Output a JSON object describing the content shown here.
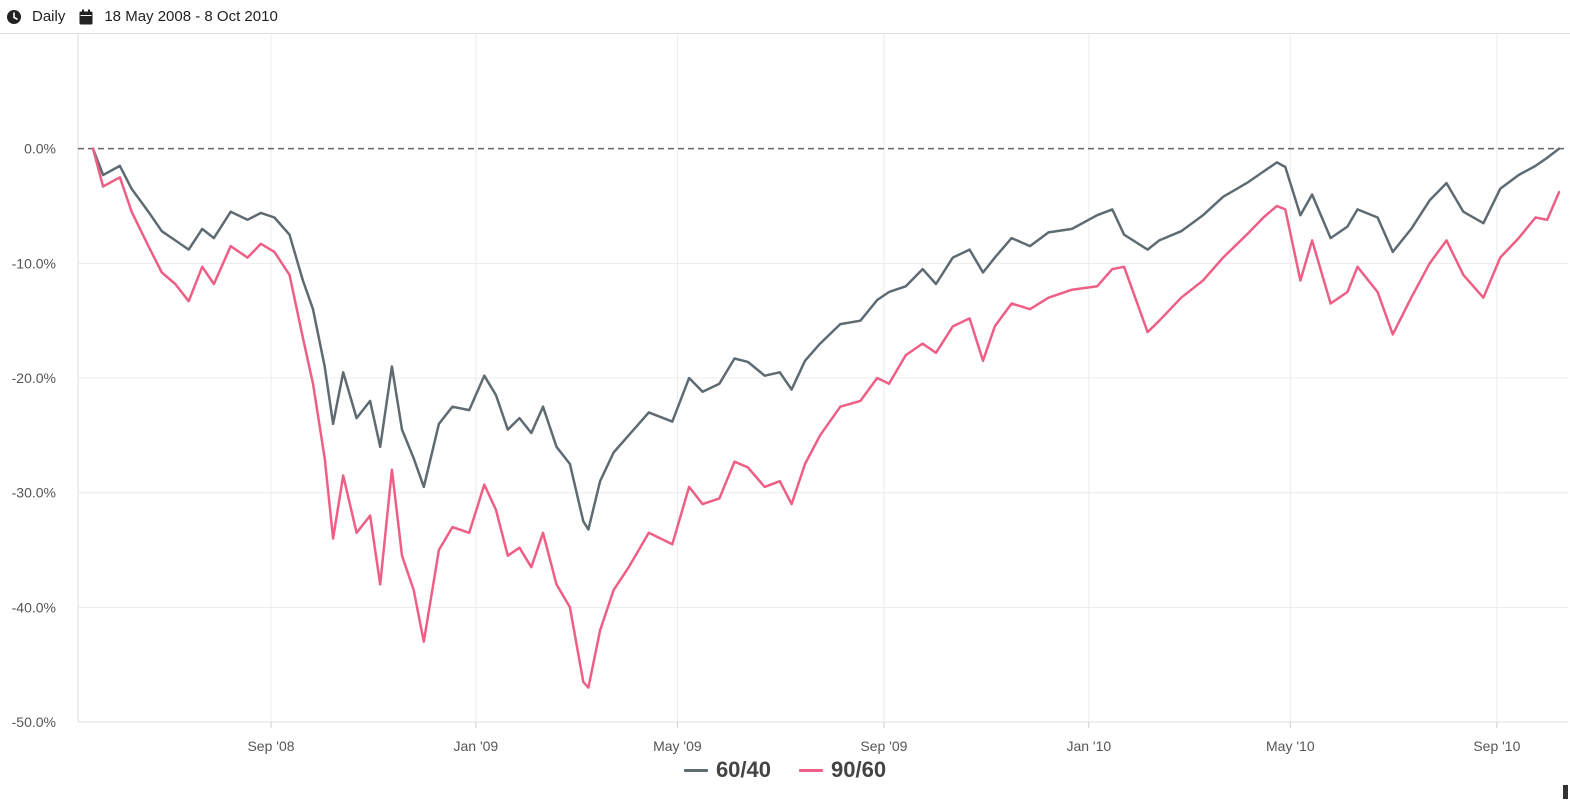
{
  "toolbar": {
    "frequency_icon": "clock-icon",
    "frequency": "Daily",
    "date_icon": "calendar-icon",
    "date_range": "18 May 2008 - 8 Oct 2010"
  },
  "colors": {
    "series_6040": "#5f6b72",
    "series_9060": "#ee5f86",
    "baseline": "#666666",
    "grid": "#ececec"
  },
  "chart_data": {
    "type": "line",
    "title": "",
    "xlabel": "",
    "ylabel": "",
    "ylim": [
      -50,
      10
    ],
    "xlim": [
      "2008-05-18",
      "2010-10-08"
    ],
    "yticks": [
      0,
      -10,
      -20,
      -30,
      -40,
      -50
    ],
    "ytick_labels": [
      "0.0%",
      "-10.0%",
      "-20.0%",
      "-30.0%",
      "-40.0%",
      "-50.0%"
    ],
    "xticks": [
      "2008-09-01",
      "2009-01-01",
      "2009-05-01",
      "2009-09-01",
      "2010-01-01",
      "2010-05-01",
      "2010-09-01"
    ],
    "xtick_labels": [
      "Sep '08",
      "Jan '09",
      "May '09",
      "Sep '09",
      "Jan '10",
      "May '10",
      "Sep '10"
    ],
    "baseline": 0,
    "grid": true,
    "legend_position": "bottom-center",
    "series": [
      {
        "name": "60/40",
        "points": [
          [
            "2008-05-18",
            0
          ],
          [
            "2008-05-24",
            -2.3
          ],
          [
            "2008-06-03",
            -1.5
          ],
          [
            "2008-06-10",
            -3.5
          ],
          [
            "2008-06-20",
            -5.5
          ],
          [
            "2008-06-28",
            -7.2
          ],
          [
            "2008-07-06",
            -8.0
          ],
          [
            "2008-07-14",
            -8.8
          ],
          [
            "2008-07-22",
            -7.0
          ],
          [
            "2008-07-29",
            -7.8
          ],
          [
            "2008-08-08",
            -5.5
          ],
          [
            "2008-08-18",
            -6.2
          ],
          [
            "2008-08-26",
            -5.6
          ],
          [
            "2008-09-03",
            -6.0
          ],
          [
            "2008-09-12",
            -7.5
          ],
          [
            "2008-09-20",
            -11.5
          ],
          [
            "2008-09-26",
            -14.0
          ],
          [
            "2008-10-03",
            -19.0
          ],
          [
            "2008-10-08",
            -24.0
          ],
          [
            "2008-10-14",
            -19.5
          ],
          [
            "2008-10-22",
            -23.5
          ],
          [
            "2008-10-30",
            -22.0
          ],
          [
            "2008-11-05",
            -26.0
          ],
          [
            "2008-11-12",
            -19.0
          ],
          [
            "2008-11-18",
            -24.5
          ],
          [
            "2008-11-25",
            -27.0
          ],
          [
            "2008-12-01",
            -29.5
          ],
          [
            "2008-12-10",
            -24.0
          ],
          [
            "2008-12-18",
            -22.5
          ],
          [
            "2008-12-28",
            -22.8
          ],
          [
            "2009-01-06",
            -19.8
          ],
          [
            "2009-01-13",
            -21.5
          ],
          [
            "2009-01-20",
            -24.5
          ],
          [
            "2009-01-27",
            -23.5
          ],
          [
            "2009-02-03",
            -24.8
          ],
          [
            "2009-02-10",
            -22.5
          ],
          [
            "2009-02-18",
            -26.0
          ],
          [
            "2009-02-26",
            -27.5
          ],
          [
            "2009-03-06",
            -32.5
          ],
          [
            "2009-03-09",
            -33.2
          ],
          [
            "2009-03-16",
            -29.0
          ],
          [
            "2009-03-24",
            -26.5
          ],
          [
            "2009-04-02",
            -25.0
          ],
          [
            "2009-04-14",
            -23.0
          ],
          [
            "2009-04-28",
            -23.8
          ],
          [
            "2009-05-08",
            -20.0
          ],
          [
            "2009-05-16",
            -21.2
          ],
          [
            "2009-05-26",
            -20.5
          ],
          [
            "2009-06-04",
            -18.3
          ],
          [
            "2009-06-12",
            -18.6
          ],
          [
            "2009-06-22",
            -19.8
          ],
          [
            "2009-07-01",
            -19.5
          ],
          [
            "2009-07-08",
            -21.0
          ],
          [
            "2009-07-16",
            -18.5
          ],
          [
            "2009-07-25",
            -17.0
          ],
          [
            "2009-08-06",
            -15.3
          ],
          [
            "2009-08-18",
            -15.0
          ],
          [
            "2009-08-28",
            -13.2
          ],
          [
            "2009-09-04",
            -12.5
          ],
          [
            "2009-09-14",
            -12.0
          ],
          [
            "2009-09-24",
            -10.5
          ],
          [
            "2009-10-02",
            -11.8
          ],
          [
            "2009-10-12",
            -9.5
          ],
          [
            "2009-10-22",
            -8.8
          ],
          [
            "2009-10-30",
            -10.8
          ],
          [
            "2009-11-06",
            -9.5
          ],
          [
            "2009-11-16",
            -7.8
          ],
          [
            "2009-11-27",
            -8.5
          ],
          [
            "2009-12-08",
            -7.3
          ],
          [
            "2009-12-22",
            -7.0
          ],
          [
            "2010-01-06",
            -5.8
          ],
          [
            "2010-01-15",
            -5.3
          ],
          [
            "2010-01-22",
            -7.5
          ],
          [
            "2010-02-05",
            -8.8
          ],
          [
            "2010-02-12",
            -8.0
          ],
          [
            "2010-02-25",
            -7.2
          ],
          [
            "2010-03-10",
            -5.8
          ],
          [
            "2010-03-22",
            -4.2
          ],
          [
            "2010-04-05",
            -3.0
          ],
          [
            "2010-04-15",
            -2.0
          ],
          [
            "2010-04-23",
            -1.2
          ],
          [
            "2010-04-28",
            -1.6
          ],
          [
            "2010-05-07",
            -5.8
          ],
          [
            "2010-05-14",
            -4.0
          ],
          [
            "2010-05-25",
            -7.8
          ],
          [
            "2010-06-04",
            -6.8
          ],
          [
            "2010-06-10",
            -5.3
          ],
          [
            "2010-06-22",
            -6.0
          ],
          [
            "2010-07-01",
            -9.0
          ],
          [
            "2010-07-12",
            -7.0
          ],
          [
            "2010-07-23",
            -4.5
          ],
          [
            "2010-08-02",
            -3.0
          ],
          [
            "2010-08-12",
            -5.5
          ],
          [
            "2010-08-24",
            -6.5
          ],
          [
            "2010-09-03",
            -3.5
          ],
          [
            "2010-09-14",
            -2.3
          ],
          [
            "2010-09-24",
            -1.5
          ],
          [
            "2010-10-01",
            -0.8
          ],
          [
            "2010-10-08",
            0
          ]
        ]
      },
      {
        "name": "90/60",
        "points": [
          [
            "2008-05-18",
            0
          ],
          [
            "2008-05-24",
            -3.3
          ],
          [
            "2008-06-03",
            -2.5
          ],
          [
            "2008-06-10",
            -5.5
          ],
          [
            "2008-06-20",
            -8.5
          ],
          [
            "2008-06-28",
            -10.8
          ],
          [
            "2008-07-06",
            -11.8
          ],
          [
            "2008-07-14",
            -13.3
          ],
          [
            "2008-07-22",
            -10.3
          ],
          [
            "2008-07-29",
            -11.8
          ],
          [
            "2008-08-08",
            -8.5
          ],
          [
            "2008-08-18",
            -9.5
          ],
          [
            "2008-08-26",
            -8.3
          ],
          [
            "2008-09-03",
            -9.0
          ],
          [
            "2008-09-12",
            -11.0
          ],
          [
            "2008-09-20",
            -16.5
          ],
          [
            "2008-09-26",
            -20.5
          ],
          [
            "2008-10-03",
            -27.0
          ],
          [
            "2008-10-08",
            -34.0
          ],
          [
            "2008-10-14",
            -28.5
          ],
          [
            "2008-10-22",
            -33.5
          ],
          [
            "2008-10-30",
            -32.0
          ],
          [
            "2008-11-05",
            -38.0
          ],
          [
            "2008-11-12",
            -28.0
          ],
          [
            "2008-11-18",
            -35.5
          ],
          [
            "2008-11-25",
            -38.5
          ],
          [
            "2008-12-01",
            -43.0
          ],
          [
            "2008-12-10",
            -35.0
          ],
          [
            "2008-12-18",
            -33.0
          ],
          [
            "2008-12-28",
            -33.5
          ],
          [
            "2009-01-06",
            -29.3
          ],
          [
            "2009-01-13",
            -31.5
          ],
          [
            "2009-01-20",
            -35.5
          ],
          [
            "2009-01-27",
            -34.8
          ],
          [
            "2009-02-03",
            -36.5
          ],
          [
            "2009-02-10",
            -33.5
          ],
          [
            "2009-02-18",
            -38.0
          ],
          [
            "2009-02-26",
            -40.0
          ],
          [
            "2009-03-06",
            -46.5
          ],
          [
            "2009-03-09",
            -47.0
          ],
          [
            "2009-03-16",
            -42.0
          ],
          [
            "2009-03-24",
            -38.5
          ],
          [
            "2009-04-02",
            -36.5
          ],
          [
            "2009-04-14",
            -33.5
          ],
          [
            "2009-04-28",
            -34.5
          ],
          [
            "2009-05-08",
            -29.5
          ],
          [
            "2009-05-16",
            -31.0
          ],
          [
            "2009-05-26",
            -30.5
          ],
          [
            "2009-06-04",
            -27.3
          ],
          [
            "2009-06-12",
            -27.8
          ],
          [
            "2009-06-22",
            -29.5
          ],
          [
            "2009-07-01",
            -29.0
          ],
          [
            "2009-07-08",
            -31.0
          ],
          [
            "2009-07-16",
            -27.5
          ],
          [
            "2009-07-25",
            -25.0
          ],
          [
            "2009-08-06",
            -22.5
          ],
          [
            "2009-08-18",
            -22.0
          ],
          [
            "2009-08-28",
            -20.0
          ],
          [
            "2009-09-04",
            -20.5
          ],
          [
            "2009-09-14",
            -18.0
          ],
          [
            "2009-09-24",
            -17.0
          ],
          [
            "2009-10-02",
            -17.8
          ],
          [
            "2009-10-12",
            -15.5
          ],
          [
            "2009-10-22",
            -14.8
          ],
          [
            "2009-10-30",
            -18.5
          ],
          [
            "2009-11-06",
            -15.5
          ],
          [
            "2009-11-16",
            -13.5
          ],
          [
            "2009-11-27",
            -14.0
          ],
          [
            "2009-12-08",
            -13.0
          ],
          [
            "2009-12-22",
            -12.3
          ],
          [
            "2010-01-06",
            -12.0
          ],
          [
            "2010-01-15",
            -10.5
          ],
          [
            "2010-01-22",
            -10.3
          ],
          [
            "2010-02-05",
            -16.0
          ],
          [
            "2010-02-12",
            -15.0
          ],
          [
            "2010-02-25",
            -13.0
          ],
          [
            "2010-03-10",
            -11.5
          ],
          [
            "2010-03-22",
            -9.5
          ],
          [
            "2010-04-05",
            -7.5
          ],
          [
            "2010-04-15",
            -6.0
          ],
          [
            "2010-04-23",
            -5.0
          ],
          [
            "2010-04-28",
            -5.3
          ],
          [
            "2010-05-07",
            -11.5
          ],
          [
            "2010-05-14",
            -8.0
          ],
          [
            "2010-05-25",
            -13.5
          ],
          [
            "2010-06-04",
            -12.5
          ],
          [
            "2010-06-10",
            -10.3
          ],
          [
            "2010-06-22",
            -12.5
          ],
          [
            "2010-07-01",
            -16.2
          ],
          [
            "2010-07-12",
            -13.0
          ],
          [
            "2010-07-23",
            -10.0
          ],
          [
            "2010-08-02",
            -8.0
          ],
          [
            "2010-08-12",
            -11.0
          ],
          [
            "2010-08-24",
            -13.0
          ],
          [
            "2010-09-03",
            -9.5
          ],
          [
            "2010-09-14",
            -7.8
          ],
          [
            "2010-09-24",
            -6.0
          ],
          [
            "2010-10-01",
            -6.2
          ],
          [
            "2010-10-08",
            -3.8
          ]
        ]
      }
    ]
  }
}
